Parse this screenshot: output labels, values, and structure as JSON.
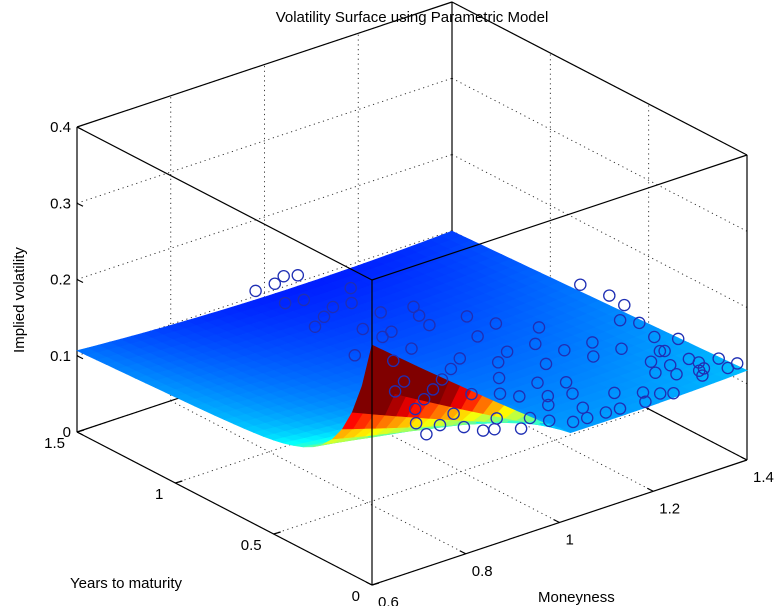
{
  "chart_data": {
    "type": "surface3d",
    "title": "Volatility Surface using Parametric Model",
    "xlabel": "Moneyness",
    "ylabel": "Years to maturity",
    "zlabel": "Implied volatility",
    "xlim": [
      0.6,
      1.4
    ],
    "ylim": [
      0,
      1.5
    ],
    "zlim": [
      0,
      0.4
    ],
    "x_ticks": [
      "0.6",
      "0.8",
      "1",
      "1.2",
      "1.4"
    ],
    "y_ticks": [
      "0",
      "0.5",
      "1",
      "1.5"
    ],
    "z_ticks": [
      "0",
      "0.1",
      "0.2",
      "0.3",
      "0.4"
    ],
    "grid": true,
    "colormap": "jet",
    "series": [
      {
        "type": "surface",
        "x_range": [
          0.6,
          1.4
        ],
        "y_range": [
          0,
          1.5
        ],
        "z_range": [
          0.09,
          0.215
        ]
      },
      {
        "type": "scatter",
        "marker": "circle",
        "color": "#1f2fb4",
        "points": [
          [
            1.02,
            1.45,
            0.125
          ],
          [
            0.96,
            1.45,
            0.118
          ],
          [
            1.05,
            1.45,
            0.12
          ],
          [
            0.98,
            1.4,
            0.13
          ],
          [
            1.1,
            1.3,
            0.113
          ],
          [
            1.0,
            1.3,
            0.118
          ],
          [
            0.96,
            1.3,
            0.122
          ],
          [
            1.06,
            1.2,
            0.115
          ],
          [
            1.15,
            1.1,
            0.105
          ],
          [
            1.08,
            1.1,
            0.112
          ],
          [
            1.12,
            1.0,
            0.113
          ],
          [
            1.0,
            1.0,
            0.12
          ],
          [
            1.04,
            0.95,
            0.115
          ],
          [
            1.18,
            0.9,
            0.113
          ],
          [
            1.1,
            0.9,
            0.118
          ],
          [
            1.2,
            0.8,
            0.113
          ],
          [
            1.14,
            0.75,
            0.115
          ],
          [
            1.25,
            0.7,
            0.111
          ],
          [
            1.2,
            0.6,
            0.113
          ],
          [
            1.0,
            0.9,
            0.123
          ],
          [
            1.28,
            0.5,
            0.112
          ],
          [
            1.3,
            0.4,
            0.113
          ],
          [
            1.24,
            0.4,
            0.115
          ],
          [
            1.34,
            0.3,
            0.115
          ],
          [
            1.3,
            0.25,
            0.116
          ],
          [
            1.36,
            0.2,
            0.114
          ],
          [
            1.35,
            0.1,
            0.117
          ],
          [
            1.38,
            0.05,
            0.118
          ],
          [
            0.9,
            0.3,
            0.123
          ],
          [
            0.85,
            0.25,
            0.125
          ],
          [
            0.95,
            0.2,
            0.12
          ],
          [
            1.0,
            0.15,
            0.117
          ],
          [
            1.02,
            0.1,
            0.116
          ],
          [
            1.05,
            0.05,
            0.115
          ],
          [
            1.08,
            0.05,
            0.114
          ],
          [
            1.12,
            0.05,
            0.113
          ],
          [
            1.15,
            0.05,
            0.112
          ],
          [
            1.1,
            0.12,
            0.114
          ],
          [
            1.06,
            0.2,
            0.115
          ],
          [
            1.18,
            0.15,
            0.113
          ],
          [
            1.22,
            0.1,
            0.112
          ],
          [
            1.24,
            0.06,
            0.112
          ],
          [
            1.26,
            0.04,
            0.111
          ],
          [
            1.2,
            0.04,
            0.112
          ],
          [
            0.96,
            0.1,
            0.118
          ],
          [
            0.92,
            0.14,
            0.12
          ],
          [
            0.88,
            0.2,
            0.123
          ],
          [
            0.9,
            0.15,
            0.121
          ],
          [
            0.8,
            0.2,
            0.13
          ],
          [
            0.82,
            0.3,
            0.127
          ],
          [
            0.86,
            0.4,
            0.124
          ],
          [
            0.9,
            0.45,
            0.122
          ],
          [
            0.94,
            0.5,
            0.12
          ],
          [
            0.98,
            0.55,
            0.118
          ],
          [
            1.02,
            0.6,
            0.117
          ],
          [
            1.06,
            0.65,
            0.116
          ],
          [
            0.98,
            0.4,
            0.119
          ],
          [
            1.02,
            0.35,
            0.118
          ],
          [
            1.04,
            0.3,
            0.117
          ],
          [
            1.08,
            0.25,
            0.116
          ],
          [
            1.12,
            0.22,
            0.115
          ],
          [
            1.14,
            0.3,
            0.115
          ],
          [
            1.1,
            0.35,
            0.116
          ],
          [
            1.16,
            0.45,
            0.115
          ],
          [
            1.22,
            0.5,
            0.114
          ],
          [
            1.06,
            0.45,
            0.117
          ],
          [
            1.1,
            0.55,
            0.116
          ],
          [
            1.14,
            0.6,
            0.115
          ],
          [
            1.02,
            0.8,
            0.117
          ],
          [
            0.96,
            0.75,
            0.12
          ],
          [
            0.92,
            0.85,
            0.122
          ],
          [
            0.94,
            1.1,
            0.122
          ],
          [
            0.98,
            1.15,
            0.12
          ],
          [
            1.02,
            1.2,
            0.118
          ],
          [
            0.92,
            0.6,
            0.121
          ],
          [
            0.88,
            0.55,
            0.123
          ],
          [
            1.34,
            0.1,
            0.116
          ],
          [
            1.4,
            0.05,
            0.12
          ],
          [
            1.39,
            0.12,
            0.119
          ],
          [
            1.36,
            0.15,
            0.116
          ],
          [
            1.3,
            0.12,
            0.117
          ],
          [
            1.32,
            0.2,
            0.114
          ],
          [
            1.28,
            0.18,
            0.115
          ],
          [
            1.33,
            0.06,
            0.117
          ],
          [
            1.35,
            0.3,
            0.113
          ],
          [
            1.37,
            0.4,
            0.114
          ],
          [
            1.38,
            0.5,
            0.117
          ],
          [
            1.39,
            0.6,
            0.125
          ],
          [
            1.4,
            0.7,
            0.122
          ],
          [
            1.36,
            0.55,
            0.118
          ],
          [
            1.38,
            0.8,
            0.127
          ],
          [
            1.4,
            0.35,
            0.112
          ]
        ]
      }
    ]
  }
}
